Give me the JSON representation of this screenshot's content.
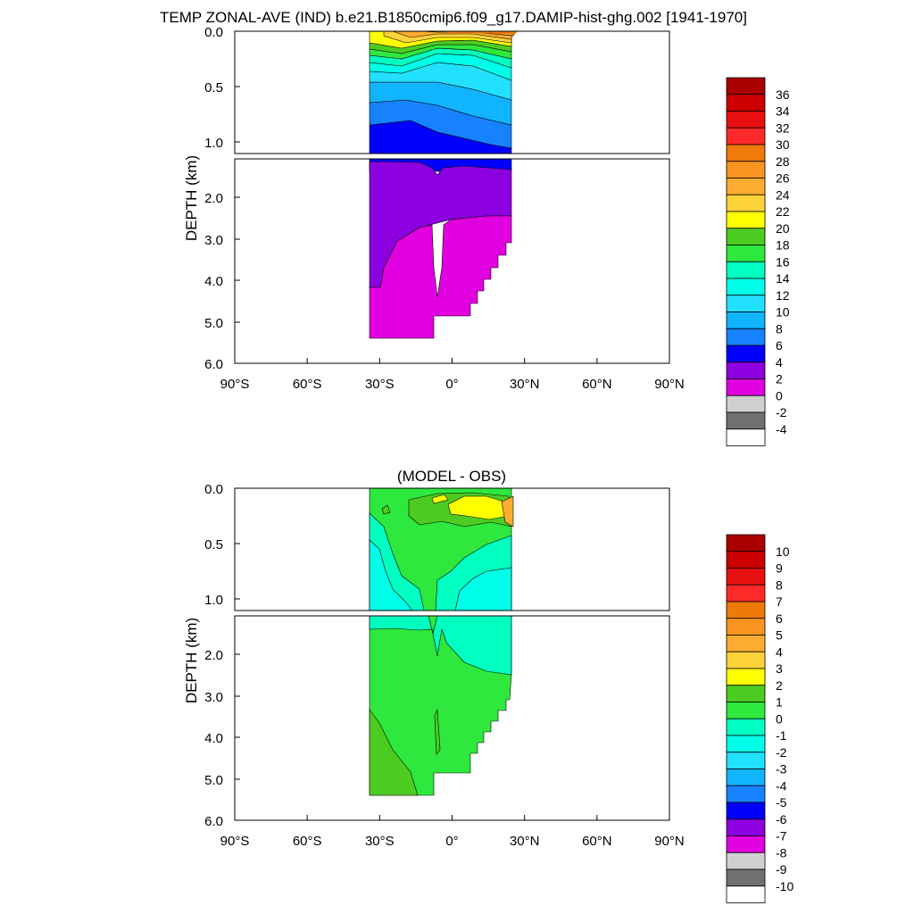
{
  "title": "TEMP ZONAL-AVE (IND) b.e21.B1850cmip6.f09_g17.DAMIP-hist-ghg.002 [1941-1970]",
  "chart_data": [
    {
      "type": "heatmap",
      "title": "",
      "ylabel": "DEPTH (km)",
      "x_tick_labels": [
        "90°S",
        "60°S",
        "30°S",
        "0°",
        "30°N",
        "60°N",
        "90°N"
      ],
      "x_ticks": [
        -90,
        -60,
        -30,
        0,
        30,
        60,
        90
      ],
      "xlim": [
        -90,
        90
      ],
      "upper_panel": {
        "ylim": [
          0.0,
          1.1
        ],
        "y_tick_labels": [
          "0.0",
          "0.5",
          "1.0"
        ],
        "y_ticks": [
          0.0,
          0.5,
          1.0
        ]
      },
      "lower_panel": {
        "ylim": [
          1.1,
          6.0
        ],
        "y_tick_labels": [
          "2.0",
          "3.0",
          "4.0",
          "5.0",
          "6.0"
        ],
        "y_ticks": [
          2.0,
          3.0,
          4.0,
          5.0,
          6.0
        ]
      },
      "colorbar": {
        "labels": [
          "36",
          "34",
          "32",
          "30",
          "28",
          "26",
          "24",
          "22",
          "20",
          "18",
          "16",
          "14",
          "12",
          "10",
          "8",
          "6",
          "4",
          "2",
          "0",
          "-2",
          "-4"
        ],
        "colors": [
          "#aa0000",
          "#cc0000",
          "#e81010",
          "#ff2a2a",
          "#ee7a0a",
          "#fa9420",
          "#fcac30",
          "#ffd23a",
          "#ffff00",
          "#4ccc20",
          "#2ee83e",
          "#00ffc0",
          "#00ffe8",
          "#22e0ff",
          "#10b4ff",
          "#1682ff",
          "#0000ff",
          "#8c00e0",
          "#e000e0",
          "#d0d0d0",
          "#707070",
          "#ffffff"
        ]
      },
      "regions": [
        {
          "label": "0 to 2",
          "depth_range": [
            2.6,
            5.35
          ],
          "lat_range": [
            -33,
            23
          ]
        },
        {
          "label": "2 to 4",
          "depth_range": [
            1.35,
            4.1
          ],
          "lat_range": [
            -33,
            25
          ]
        },
        {
          "label": "4 to 6",
          "depth_range": [
            0.85,
            1.35
          ],
          "lat_range": [
            -33,
            25
          ]
        },
        {
          "label": "above 20",
          "depth_range": [
            0.0,
            0.15
          ],
          "lat_range": [
            -33,
            28
          ]
        }
      ]
    },
    {
      "type": "heatmap",
      "title": "(MODEL - OBS)",
      "ylabel": "DEPTH (km)",
      "x_tick_labels": [
        "90°S",
        "60°S",
        "30°S",
        "0°",
        "30°N",
        "60°N",
        "90°N"
      ],
      "x_ticks": [
        -90,
        -60,
        -30,
        0,
        30,
        60,
        90
      ],
      "xlim": [
        -90,
        90
      ],
      "upper_panel": {
        "ylim": [
          0.0,
          1.1
        ],
        "y_tick_labels": [
          "0.0",
          "0.5",
          "1.0"
        ],
        "y_ticks": [
          0.0,
          0.5,
          1.0
        ]
      },
      "lower_panel": {
        "ylim": [
          1.1,
          6.0
        ],
        "y_tick_labels": [
          "2.0",
          "3.0",
          "4.0",
          "5.0",
          "6.0"
        ],
        "y_ticks": [
          2.0,
          3.0,
          4.0,
          5.0,
          6.0
        ]
      },
      "colorbar": {
        "labels": [
          "10",
          "9",
          "8",
          "7",
          "6",
          "5",
          "4",
          "3",
          "2",
          "1",
          "0",
          "-1",
          "-2",
          "-3",
          "-4",
          "-5",
          "-6",
          "-7",
          "-8",
          "-9",
          "-10"
        ],
        "colors": [
          "#aa0000",
          "#cc0000",
          "#e81010",
          "#ff2a2a",
          "#ee7a0a",
          "#fa9420",
          "#fcac30",
          "#ffd23a",
          "#ffff00",
          "#4ccc20",
          "#2ee83e",
          "#00ffc0",
          "#00ffe8",
          "#22e0ff",
          "#10b4ff",
          "#1682ff",
          "#0000ff",
          "#8c00e0",
          "#e000e0",
          "#d0d0d0",
          "#707070",
          "#ffffff"
        ]
      },
      "regions": [
        {
          "label": "-1 to 0",
          "depth_range": [
            0.3,
            2.6
          ],
          "lat_range": [
            -33,
            25
          ]
        },
        {
          "label": "0 to 1",
          "depth_range": [
            0.05,
            5.3
          ],
          "lat_range": [
            -33,
            25
          ]
        },
        {
          "label": "1 to 2",
          "depth_range": [
            3.3,
            5.3
          ],
          "lat_range": [
            -33,
            -20
          ]
        },
        {
          "label": "2 to 3",
          "depth_range": [
            0.0,
            0.1
          ],
          "lat_range": [
            -5,
            15
          ]
        }
      ]
    }
  ]
}
